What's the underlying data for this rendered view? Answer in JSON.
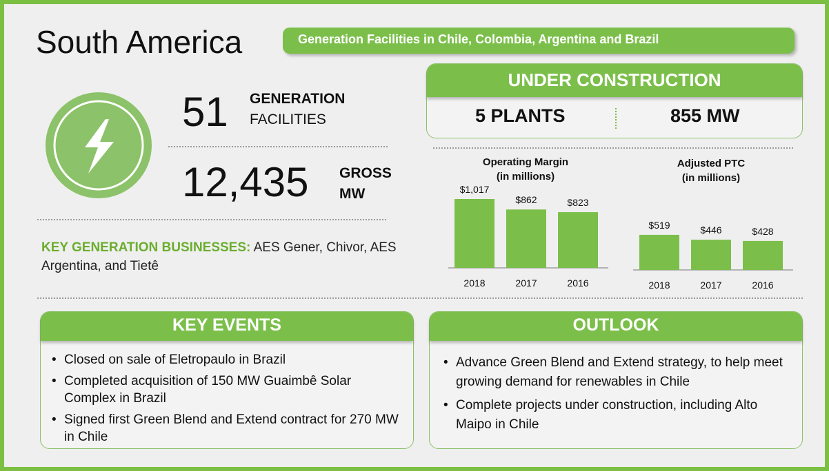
{
  "header": {
    "title": "South America",
    "subtitle": "Generation Facilities in Chile, Colombia, Argentina and Brazil"
  },
  "stats": {
    "facilities": {
      "value": "51",
      "label_bold": "GENERATION",
      "label_rest": "FACILITIES"
    },
    "capacity": {
      "value": "12,435",
      "label_line1": "GROSS",
      "label_line2": "MW"
    }
  },
  "key_businesses": {
    "label": "KEY GENERATION BUSINESSES:",
    "text": "AES Gener, Chivor, AES Argentina, and Tietê"
  },
  "under_construction": {
    "title": "UNDER CONSTRUCTION",
    "plants": "5 PLANTS",
    "mw": "855 MW"
  },
  "chart_data": [
    {
      "type": "bar",
      "title": "Operating Margin",
      "subtitle": "(in millions)",
      "categories": [
        "2018",
        "2017",
        "2016"
      ],
      "values": [
        1017,
        862,
        823
      ],
      "value_labels": [
        "$1,017",
        "$862",
        "$823"
      ],
      "ylim": [
        0,
        1100
      ],
      "xlabel": "",
      "ylabel": ""
    },
    {
      "type": "bar",
      "title": "Adjusted PTC",
      "subtitle": "(in millions)",
      "categories": [
        "2018",
        "2017",
        "2016"
      ],
      "values": [
        519,
        446,
        428
      ],
      "value_labels": [
        "$519",
        "$446",
        "$428"
      ],
      "ylim": [
        0,
        1100
      ],
      "xlabel": "",
      "ylabel": ""
    }
  ],
  "key_events": {
    "title": "KEY EVENTS",
    "items": [
      "Closed on sale of Eletropaulo in Brazil",
      "Completed acquisition of 150 MW Guaimbê Solar Complex in Brazil",
      "Signed first Green Blend and Extend contract for 270 MW in Chile"
    ]
  },
  "outlook": {
    "title": "OUTLOOK",
    "items": [
      "Advance Green Blend and Extend strategy, to help meet growing demand for renewables in Chile",
      "Complete projects under construction, including Alto Maipo in Chile"
    ]
  },
  "colors": {
    "accent": "#7bbf4a",
    "bar": "#7bbf4a",
    "highlight_text": "#6aae2c"
  },
  "icons": {
    "hero": "lightning-bolt-icon"
  }
}
